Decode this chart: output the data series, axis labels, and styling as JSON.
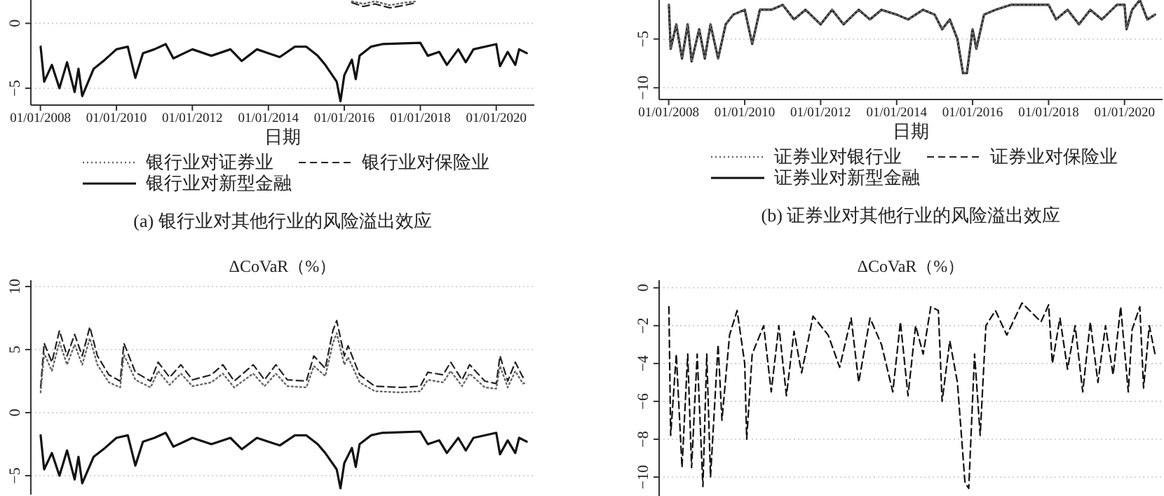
{
  "chart_data": [
    {
      "type": "line",
      "xlabel": "日期",
      "annotations": [
        "(a) 银行业对其他行业的风险溢出效应"
      ],
      "legend": "bottom",
      "grid": "y",
      "xlim": [
        "2007-10-01",
        "2021-01-01"
      ],
      "ylim": [
        -6.3,
        1.8
      ],
      "yticks": [
        -5,
        0
      ],
      "xticks": [
        {
          "value": "2008-01-01",
          "label": "01/01/2008"
        },
        {
          "value": "2010-01-01",
          "label": "01/01/2010"
        },
        {
          "value": "2012-01-01",
          "label": "01/01/2012"
        },
        {
          "value": "2014-01-01",
          "label": "01/01/2014"
        },
        {
          "value": "2016-01-01",
          "label": "01/01/2016"
        },
        {
          "value": "2018-01-01",
          "label": "01/01/2018"
        },
        {
          "value": "2020-01-01",
          "label": "01/01/2020"
        }
      ],
      "series": [
        {
          "name": "银行业对证券业",
          "color": "#666666",
          "line_style": "dotted",
          "x": [
            "2016-03-14",
            "2016-07-02",
            "2016-10-20",
            "2017-03-14",
            "2017-08-08",
            "2017-11-25"
          ],
          "values": [
            1.7,
            1.5,
            1.7,
            1.4,
            1.6,
            1.7
          ]
        },
        {
          "name": "银行业对保险业",
          "color": "#222222",
          "line_style": "dashed",
          "x": [
            "2016-03-14",
            "2016-07-02",
            "2016-10-20",
            "2017-03-14",
            "2017-08-08",
            "2017-11-25"
          ],
          "values": [
            1.6,
            1.3,
            1.5,
            1.2,
            1.4,
            1.6
          ]
        },
        {
          "name": "银行业对新型金融",
          "color": "#111111",
          "line_style": "solid",
          "x": [
            "2008-01-03",
            "2008-02-06",
            "2008-04-20",
            "2008-07-02",
            "2008-09-13",
            "2008-11-25",
            "2009-01-01",
            "2009-02-06",
            "2009-05-27",
            "2009-09-13",
            "2010-01-01",
            "2010-04-20",
            "2010-07-02",
            "2010-09-13",
            "2011-01-01",
            "2011-04-20",
            "2011-07-02",
            "2012-01-01",
            "2012-07-02",
            "2013-01-01",
            "2013-04-20",
            "2013-09-13",
            "2014-01-01",
            "2014-04-20",
            "2014-09-13",
            "2015-01-01",
            "2015-04-20",
            "2015-07-02",
            "2015-10-20",
            "2015-11-25",
            "2016-01-01",
            "2016-03-14",
            "2016-04-20",
            "2016-05-27",
            "2016-09-13",
            "2017-01-01",
            "2018-01-01",
            "2018-03-14",
            "2018-07-02",
            "2018-09-13",
            "2019-01-01",
            "2019-03-14",
            "2019-05-27",
            "2020-01-01",
            "2020-02-06",
            "2020-04-20",
            "2020-07-02",
            "2020-08-08",
            "2020-10-20"
          ],
          "values": [
            -1.8,
            -4.5,
            -3.2,
            -5.0,
            -3.0,
            -5.3,
            -3.5,
            -5.6,
            -3.5,
            -2.8,
            -2.0,
            -1.8,
            -4.2,
            -2.3,
            -2.0,
            -1.6,
            -2.7,
            -2.0,
            -2.5,
            -2.0,
            -2.9,
            -2.0,
            -2.3,
            -2.6,
            -1.8,
            -1.8,
            -2.5,
            -3.2,
            -4.5,
            -6.0,
            -4.0,
            -2.8,
            -4.3,
            -2.5,
            -1.8,
            -1.6,
            -1.5,
            -2.5,
            -2.2,
            -3.2,
            -2.0,
            -3.0,
            -2.0,
            -1.6,
            -3.3,
            -2.2,
            -3.2,
            -2.0,
            -2.3
          ]
        }
      ]
    },
    {
      "type": "line",
      "xlabel": "日期",
      "annotations": [
        "(b) 证券业对其他行业的风险溢出效应"
      ],
      "legend": "bottom",
      "grid": "y",
      "xlim": [
        "2007-10-01",
        "2021-01-01"
      ],
      "ylim": [
        -11.2,
        -1
      ],
      "yticks": [
        -10,
        -5
      ],
      "xticks": [
        {
          "value": "2008-01-01",
          "label": "01/01/2008"
        },
        {
          "value": "2010-01-01",
          "label": "01/01/2010"
        },
        {
          "value": "2012-01-01",
          "label": "01/01/2012"
        },
        {
          "value": "2014-01-01",
          "label": "01/01/2014"
        },
        {
          "value": "2016-01-01",
          "label": "01/01/2016"
        },
        {
          "value": "2018-01-01",
          "label": "01/01/2018"
        },
        {
          "value": "2020-01-01",
          "label": "01/01/2020"
        }
      ],
      "x": [
        "2008-01-03",
        "2008-01-20",
        "2008-03-14",
        "2008-05-08",
        "2008-07-02",
        "2008-08-08",
        "2008-10-20",
        "2008-12-13",
        "2009-02-06",
        "2009-04-20",
        "2009-07-02",
        "2009-09-13",
        "2010-01-01",
        "2010-03-14",
        "2010-05-27",
        "2010-09-13",
        "2011-01-01",
        "2011-04-20",
        "2011-08-08",
        "2012-01-01",
        "2012-04-20",
        "2012-08-08",
        "2013-01-01",
        "2013-04-20",
        "2013-08-08",
        "2014-01-01",
        "2014-04-20",
        "2014-09-13",
        "2015-01-01",
        "2015-03-14",
        "2015-05-27",
        "2015-08-08",
        "2015-10-01",
        "2015-11-07",
        "2016-01-01",
        "2016-02-06",
        "2016-04-20",
        "2016-08-08",
        "2017-01-01",
        "2017-07-02",
        "2018-01-01",
        "2018-03-14",
        "2018-07-02",
        "2018-10-20",
        "2019-02-06",
        "2019-05-27",
        "2019-10-20",
        "2020-01-01",
        "2020-01-20",
        "2020-03-14",
        "2020-05-27",
        "2020-08-08",
        "2020-10-20"
      ],
      "series": [
        {
          "name": "证券业对银行业",
          "color": "#666666",
          "line_style": "dotted",
          "values": [
            -1.5,
            -6.0,
            -3.5,
            -7.0,
            -3.5,
            -7.3,
            -4.0,
            -7.0,
            -3.5,
            -7.0,
            -3.5,
            -2.5,
            -2.0,
            -5.5,
            -2.0,
            -2.0,
            -1.5,
            -3.0,
            -2.0,
            -3.5,
            -2.0,
            -3.5,
            -2.0,
            -3.0,
            -2.0,
            -2.5,
            -3.0,
            -2.0,
            -2.5,
            -4.0,
            -3.0,
            -5.0,
            -8.5,
            -8.5,
            -4.0,
            -6.0,
            -2.5,
            -2.0,
            -1.5,
            -1.5,
            -1.5,
            -3.0,
            -2.0,
            -3.5,
            -2.0,
            -3.0,
            -1.5,
            -1.5,
            -4.0,
            -2.0,
            -1.0,
            -3.0,
            -2.5
          ]
        },
        {
          "name": "证券业对保险业",
          "color": "#222222",
          "line_style": "dashed",
          "values": [
            -1.5,
            -6.0,
            -3.5,
            -7.0,
            -3.5,
            -7.3,
            -4.0,
            -7.0,
            -3.5,
            -7.0,
            -3.5,
            -2.5,
            -2.0,
            -5.5,
            -2.0,
            -2.0,
            -1.5,
            -3.0,
            -2.0,
            -3.5,
            -2.0,
            -3.5,
            -2.0,
            -3.0,
            -2.0,
            -2.5,
            -3.0,
            -2.0,
            -2.5,
            -4.0,
            -3.0,
            -5.0,
            -8.5,
            -8.5,
            -4.0,
            -6.0,
            -2.5,
            -2.0,
            -1.5,
            -1.5,
            -1.5,
            -3.0,
            -2.0,
            -3.5,
            -2.0,
            -3.0,
            -1.5,
            -1.5,
            -4.0,
            -2.0,
            -1.0,
            -3.0,
            -2.5
          ]
        },
        {
          "name": "证券业对新型金融",
          "color": "#111111",
          "line_style": "solid",
          "values": [
            -1.5,
            -6.0,
            -3.5,
            -7.0,
            -3.5,
            -7.3,
            -4.0,
            -7.0,
            -3.5,
            -7.0,
            -3.5,
            -2.5,
            -2.0,
            -5.5,
            -2.0,
            -2.0,
            -1.5,
            -3.0,
            -2.0,
            -3.5,
            -2.0,
            -3.5,
            -2.0,
            -3.0,
            -2.0,
            -2.5,
            -3.0,
            -2.0,
            -2.5,
            -4.0,
            -3.0,
            -5.0,
            -8.5,
            -8.5,
            -4.0,
            -6.0,
            -2.5,
            -2.0,
            -1.5,
            -1.5,
            -1.5,
            -3.0,
            -2.0,
            -3.5,
            -2.0,
            -3.0,
            -1.5,
            -1.5,
            -4.0,
            -2.0,
            -1.0,
            -3.0,
            -2.5
          ]
        }
      ]
    },
    {
      "type": "line",
      "title": "ΔCoVaR（%）",
      "grid": "y",
      "tick_labels": "y",
      "xlim": [
        "2007-10-01",
        "2021-01-01"
      ],
      "ylim": [
        -6.5,
        10.5
      ],
      "yticks": [
        -5,
        0,
        5,
        10
      ],
      "series": [
        {
          "color": "#666666",
          "line_style": "dotted",
          "x": [
            "2008-01-03",
            "2008-02-06",
            "2008-04-20",
            "2008-07-02",
            "2008-09-13",
            "2008-11-25",
            "2009-02-06",
            "2009-04-20",
            "2009-07-02",
            "2009-10-20",
            "2010-02-06",
            "2010-03-14",
            "2010-07-02",
            "2010-11-25",
            "2011-02-06",
            "2011-05-27",
            "2011-09-13",
            "2012-01-01",
            "2012-07-02",
            "2012-10-20",
            "2013-02-06",
            "2013-08-08",
            "2013-11-25",
            "2014-03-14",
            "2014-07-02",
            "2015-01-01",
            "2015-03-14",
            "2015-07-02",
            "2015-09-13",
            "2015-10-20",
            "2016-01-01",
            "2016-02-06",
            "2016-05-27",
            "2016-10-20",
            "2017-07-02",
            "2018-01-01",
            "2018-03-14",
            "2018-08-08",
            "2018-10-20",
            "2019-02-06",
            "2019-04-20",
            "2019-09-13",
            "2020-01-01",
            "2020-02-06",
            "2020-04-20",
            "2020-07-02",
            "2020-09-13",
            "2020-10-20"
          ],
          "values": [
            1.6,
            4.7,
            3.3,
            5.6,
            3.8,
            5.4,
            3.8,
            5.9,
            3.8,
            2.4,
            2.0,
            4.6,
            2.6,
            2.0,
            3.3,
            2.2,
            3.1,
            2.1,
            2.4,
            3.1,
            2.0,
            3.1,
            2.1,
            3.1,
            2.1,
            2.0,
            3.7,
            2.9,
            5.5,
            6.3,
            3.8,
            4.4,
            2.4,
            1.7,
            1.6,
            1.7,
            2.6,
            2.4,
            3.3,
            2.1,
            3.1,
            2.0,
            1.9,
            3.7,
            2.0,
            3.3,
            2.3,
            2.4
          ]
        },
        {
          "color": "#222222",
          "line_style": "dashed",
          "x": [
            "2008-01-03",
            "2008-02-06",
            "2008-04-20",
            "2008-07-02",
            "2008-09-13",
            "2008-11-25",
            "2009-02-06",
            "2009-04-20",
            "2009-07-02",
            "2009-10-20",
            "2010-02-06",
            "2010-03-14",
            "2010-07-02",
            "2010-11-25",
            "2011-02-06",
            "2011-05-27",
            "2011-09-13",
            "2012-01-01",
            "2012-07-02",
            "2012-10-20",
            "2013-02-06",
            "2013-08-08",
            "2013-11-25",
            "2014-03-14",
            "2014-07-02",
            "2015-01-01",
            "2015-03-14",
            "2015-07-02",
            "2015-09-13",
            "2015-10-20",
            "2016-01-01",
            "2016-02-06",
            "2016-05-27",
            "2016-10-20",
            "2017-07-02",
            "2018-01-01",
            "2018-03-14",
            "2018-08-08",
            "2018-10-20",
            "2019-02-06",
            "2019-04-20",
            "2019-09-13",
            "2020-01-01",
            "2020-02-06",
            "2020-04-20",
            "2020-07-02",
            "2020-09-13",
            "2020-10-20"
          ],
          "values": [
            2.0,
            5.5,
            4.0,
            6.5,
            4.5,
            6.2,
            4.5,
            6.8,
            4.5,
            3.0,
            2.5,
            5.5,
            3.2,
            2.5,
            4.0,
            2.8,
            3.8,
            2.6,
            3.0,
            3.8,
            2.5,
            3.8,
            2.6,
            3.8,
            2.6,
            2.5,
            4.5,
            3.5,
            6.5,
            7.3,
            4.5,
            5.3,
            3.0,
            2.1,
            2.0,
            2.1,
            3.2,
            3.0,
            4.0,
            2.6,
            3.8,
            2.5,
            2.3,
            4.5,
            2.5,
            4.0,
            2.8,
            2.9
          ]
        },
        {
          "color": "#111111",
          "line_style": "solid",
          "x": [
            "2008-01-03",
            "2008-02-06",
            "2008-04-20",
            "2008-07-02",
            "2008-09-13",
            "2008-11-25",
            "2009-01-01",
            "2009-02-06",
            "2009-05-27",
            "2009-09-13",
            "2010-01-01",
            "2010-04-20",
            "2010-07-02",
            "2010-09-13",
            "2011-01-01",
            "2011-04-20",
            "2011-07-02",
            "2012-01-01",
            "2012-07-02",
            "2013-01-01",
            "2013-04-20",
            "2013-09-13",
            "2014-01-01",
            "2014-04-20",
            "2014-09-13",
            "2015-01-01",
            "2015-04-20",
            "2015-07-02",
            "2015-10-20",
            "2015-11-25",
            "2016-01-01",
            "2016-03-14",
            "2016-04-20",
            "2016-05-27",
            "2016-09-13",
            "2017-01-01",
            "2018-01-01",
            "2018-03-14",
            "2018-07-02",
            "2018-09-13",
            "2019-01-01",
            "2019-03-14",
            "2019-05-27",
            "2020-01-01",
            "2020-02-06",
            "2020-04-20",
            "2020-07-02",
            "2020-08-08",
            "2020-10-20"
          ],
          "values": [
            -1.8,
            -4.5,
            -3.2,
            -5.0,
            -3.0,
            -5.3,
            -3.5,
            -5.6,
            -3.5,
            -2.8,
            -2.0,
            -1.8,
            -4.2,
            -2.3,
            -2.0,
            -1.6,
            -2.7,
            -2.0,
            -2.5,
            -2.0,
            -2.9,
            -2.0,
            -2.3,
            -2.6,
            -1.8,
            -1.8,
            -2.5,
            -3.2,
            -4.5,
            -6.0,
            -4.0,
            -2.8,
            -4.3,
            -2.5,
            -1.8,
            -1.6,
            -1.5,
            -2.5,
            -2.2,
            -3.2,
            -2.0,
            -3.0,
            -2.0,
            -1.6,
            -3.3,
            -2.2,
            -3.2,
            -2.0,
            -2.3
          ]
        }
      ]
    },
    {
      "type": "line",
      "title": "ΔCoVaR（%）",
      "grid": "y",
      "tick_labels": "y",
      "xlim": [
        "2007-10-01",
        "2021-01-01"
      ],
      "ylim": [
        -11,
        0.4
      ],
      "yticks": [
        -10,
        -8,
        -6,
        -4,
        -2,
        0
      ],
      "series": [
        {
          "color": "#111111",
          "line_style": "dashed",
          "x": [
            "2008-01-03",
            "2008-01-20",
            "2008-03-14",
            "2008-05-08",
            "2008-07-02",
            "2008-08-08",
            "2008-10-01",
            "2008-11-25",
            "2009-01-01",
            "2009-02-06",
            "2009-04-20",
            "2009-05-27",
            "2009-08-08",
            "2009-10-20",
            "2010-01-01",
            "2010-01-20",
            "2010-03-14",
            "2010-07-02",
            "2010-09-13",
            "2010-11-25",
            "2011-02-06",
            "2011-04-20",
            "2011-07-02",
            "2011-10-20",
            "2012-03-14",
            "2012-07-02",
            "2012-10-20",
            "2013-01-01",
            "2013-04-20",
            "2013-08-08",
            "2013-11-25",
            "2014-02-06",
            "2014-04-20",
            "2014-07-02",
            "2014-09-13",
            "2014-11-25",
            "2015-02-06",
            "2015-03-14",
            "2015-05-27",
            "2015-08-08",
            "2015-10-20",
            "2015-11-25",
            "2016-01-20",
            "2016-03-14",
            "2016-05-08",
            "2016-08-08",
            "2016-11-25",
            "2017-04-20",
            "2017-10-20",
            "2018-01-01",
            "2018-02-06",
            "2018-04-20",
            "2018-07-02",
            "2018-09-13",
            "2018-11-25",
            "2019-02-06",
            "2019-04-20",
            "2019-07-02",
            "2019-09-13",
            "2019-11-25",
            "2020-02-06",
            "2020-03-14",
            "2020-05-27",
            "2020-07-02",
            "2020-08-26",
            "2020-10-20"
          ],
          "values": [
            -1.0,
            -7.8,
            -3.5,
            -9.5,
            -3.5,
            -9.5,
            -3.5,
            -10.5,
            -3.5,
            -10.0,
            -3.0,
            -7.0,
            -2.5,
            -1.2,
            -4.0,
            -8.0,
            -3.5,
            -2.0,
            -5.5,
            -2.0,
            -5.7,
            -2.3,
            -4.5,
            -1.5,
            -2.5,
            -4.2,
            -1.6,
            -5.0,
            -1.6,
            -3.0,
            -5.5,
            -1.8,
            -5.7,
            -2.0,
            -3.5,
            -1.0,
            -1.2,
            -6.0,
            -2.8,
            -5.0,
            -10.3,
            -10.6,
            -3.5,
            -7.8,
            -2.0,
            -1.2,
            -2.5,
            -0.8,
            -1.8,
            -0.9,
            -4.0,
            -1.6,
            -4.3,
            -2.0,
            -5.5,
            -1.8,
            -5.0,
            -2.0,
            -4.6,
            -1.0,
            -5.5,
            -2.2,
            -1.0,
            -5.3,
            -2.0,
            -3.5
          ]
        }
      ]
    }
  ]
}
